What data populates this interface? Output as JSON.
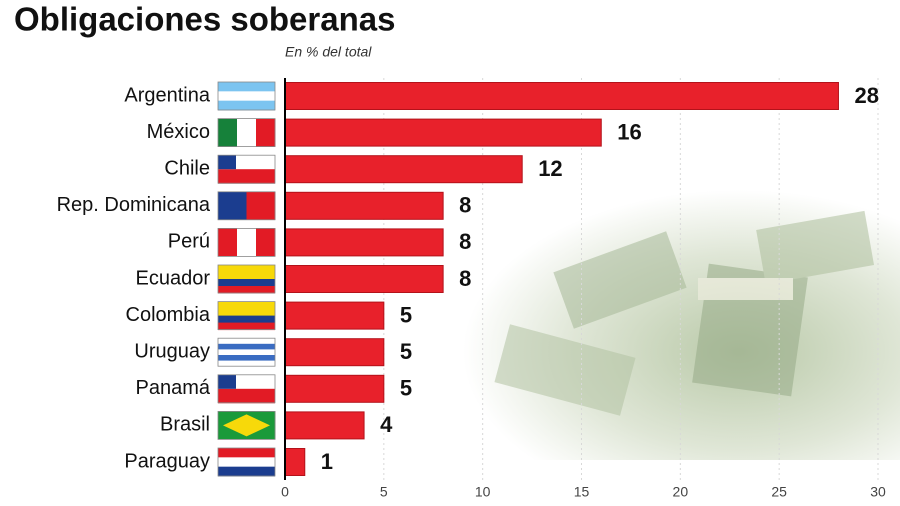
{
  "chart_data": {
    "type": "hbar",
    "title": "Obligaciones soberanas",
    "subtitle": "En % del total",
    "categories": [
      "Argentina",
      "México",
      "Chile",
      "Rep. Dominicana",
      "Perú",
      "Ecuador",
      "Colombia",
      "Uruguay",
      "Panamá",
      "Brasil",
      "Paraguay"
    ],
    "values": [
      28,
      16,
      12,
      8,
      8,
      8,
      5,
      5,
      5,
      4,
      1
    ],
    "color": "#e8212b",
    "xlim": [
      0,
      30
    ],
    "xticks": [
      0,
      5,
      10,
      15,
      20,
      25,
      30
    ],
    "grid": true
  }
}
